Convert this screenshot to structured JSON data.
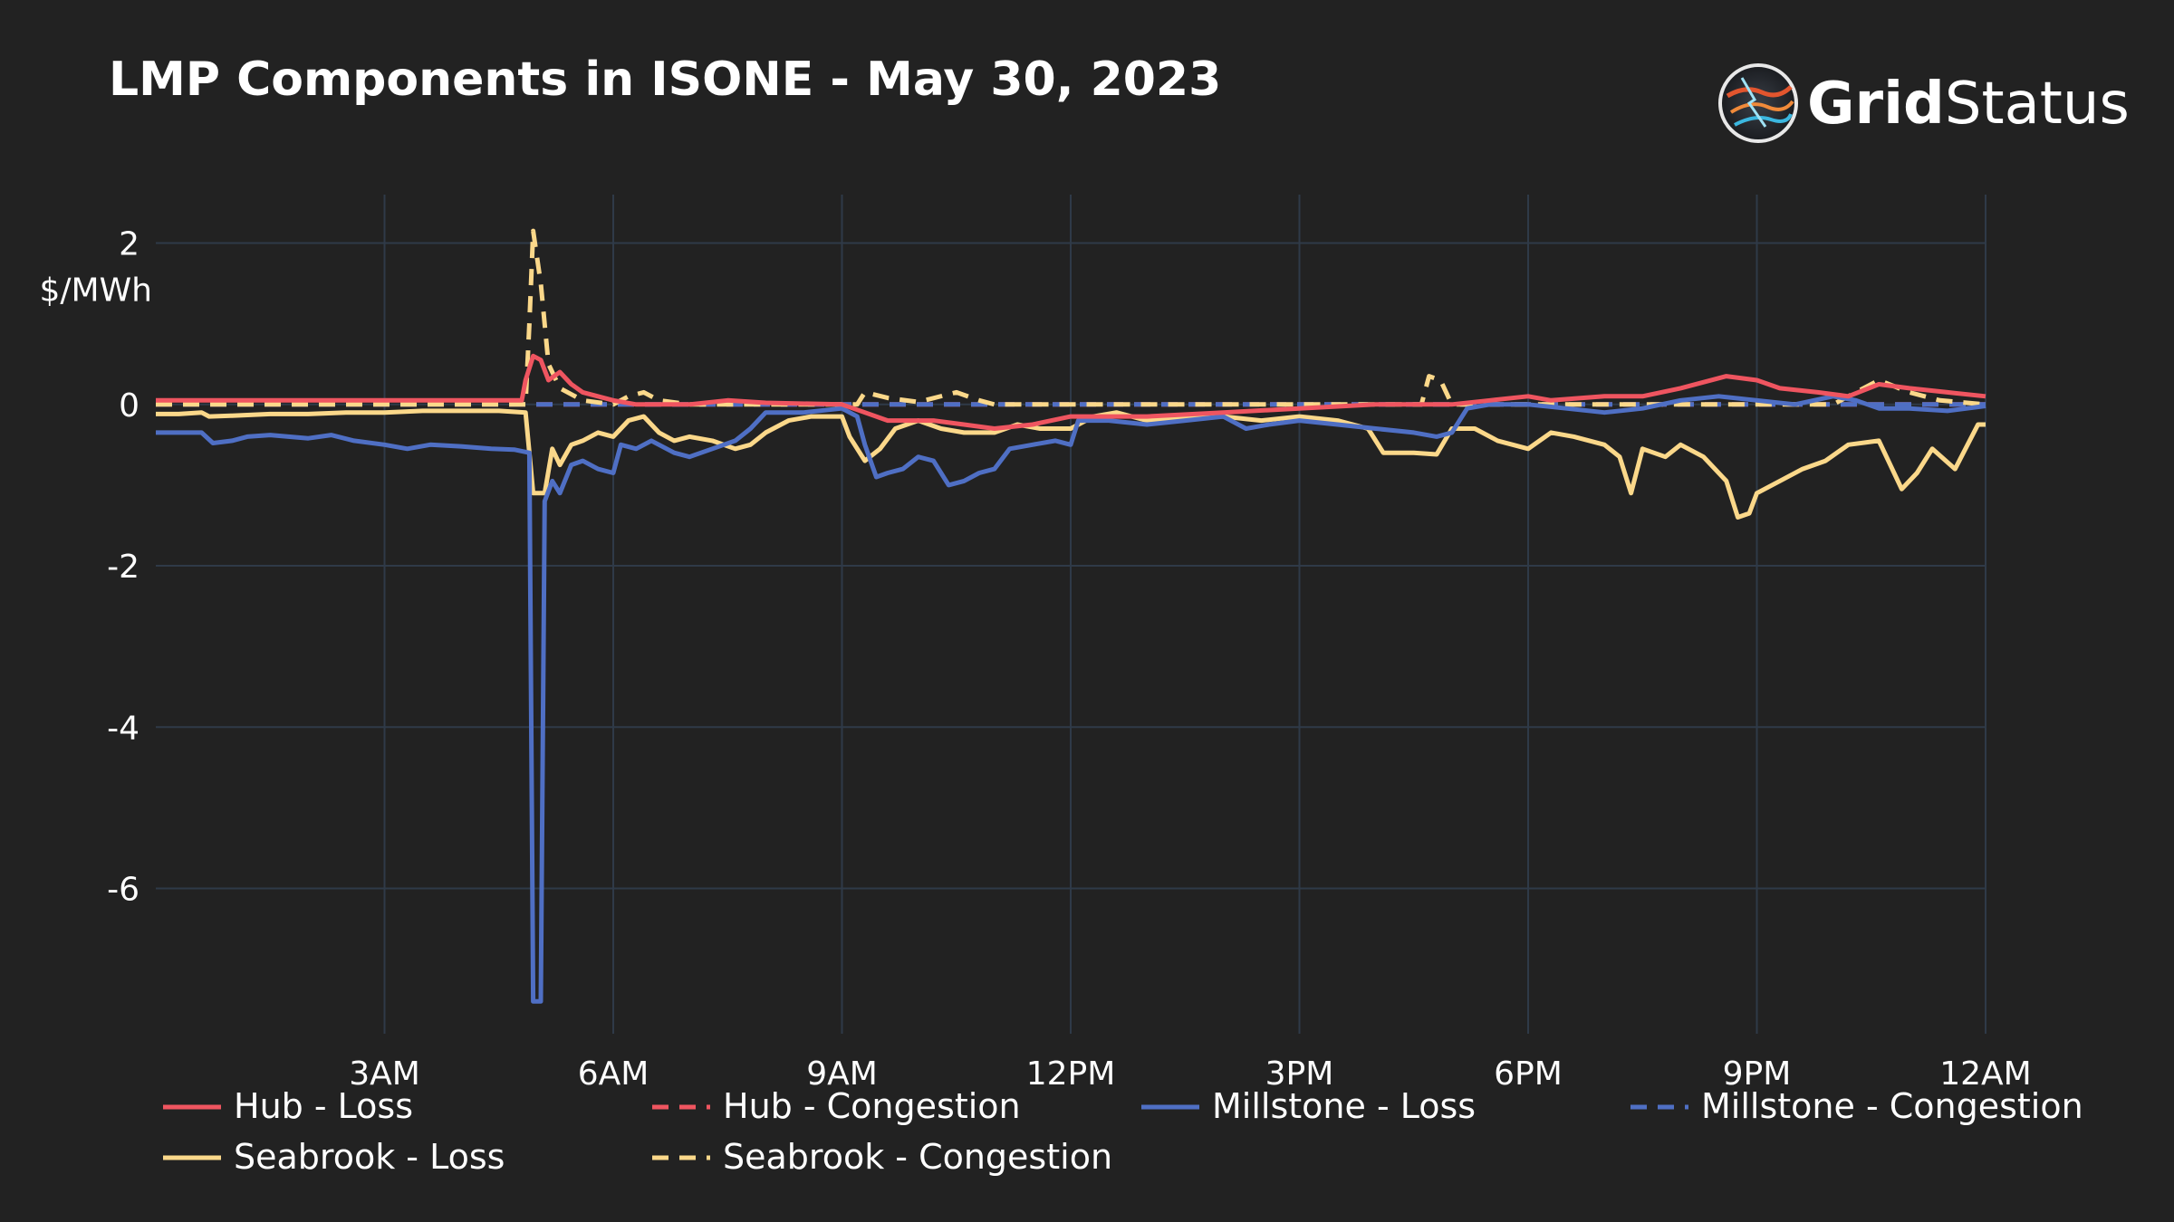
{
  "title": "LMP Components in ISONE - May 30, 2023",
  "logo": {
    "bold": "Grid",
    "regular": "Status"
  },
  "colors": {
    "background": "#222222",
    "grid": "#2f3a48",
    "text": "#ffffff",
    "red": "#ef5560",
    "blue": "#4f6fc4",
    "yellow": "#fbd88a"
  },
  "chart_data": {
    "type": "line",
    "title": "LMP Components in ISONE - May 30, 2023",
    "ylabel": "$/MWh",
    "xlabel": "",
    "x_unit": "hours since midnight May 30, 2023",
    "xlim": [
      0,
      24
    ],
    "ylim": [
      -7.8,
      2.6
    ],
    "x_ticks": [
      {
        "value": 3,
        "label": "3AM"
      },
      {
        "value": 6,
        "label": "6AM"
      },
      {
        "value": 9,
        "label": "9AM"
      },
      {
        "value": 12,
        "label": "12PM"
      },
      {
        "value": 15,
        "label": "3PM"
      },
      {
        "value": 18,
        "label": "6PM"
      },
      {
        "value": 21,
        "label": "9PM"
      },
      {
        "value": 24,
        "label": "12AM"
      }
    ],
    "y_ticks": [
      {
        "value": 2,
        "label": "2"
      },
      {
        "value": 0,
        "label": "0"
      },
      {
        "value": -2,
        "label": "-2"
      },
      {
        "value": -4,
        "label": "-4"
      },
      {
        "value": -6,
        "label": "-6"
      }
    ],
    "grid": true,
    "legend_position": "bottom",
    "series": [
      {
        "name": "Hub - Loss",
        "color": "#ef5560",
        "dash": "solid",
        "points": [
          [
            0,
            0.05
          ],
          [
            4.8,
            0.05
          ],
          [
            4.85,
            0.3
          ],
          [
            4.95,
            0.6
          ],
          [
            5.05,
            0.55
          ],
          [
            5.15,
            0.3
          ],
          [
            5.3,
            0.4
          ],
          [
            5.45,
            0.25
          ],
          [
            5.6,
            0.15
          ],
          [
            6,
            0.05
          ],
          [
            6.3,
            0
          ],
          [
            7,
            0
          ],
          [
            7.5,
            0.05
          ],
          [
            8,
            0.02
          ],
          [
            9,
            0
          ],
          [
            9.3,
            -0.1
          ],
          [
            9.6,
            -0.2
          ],
          [
            10.2,
            -0.2
          ],
          [
            10.6,
            -0.25
          ],
          [
            11,
            -0.3
          ],
          [
            11.5,
            -0.25
          ],
          [
            12,
            -0.15
          ],
          [
            13,
            -0.15
          ],
          [
            14,
            -0.1
          ],
          [
            15,
            -0.05
          ],
          [
            16,
            0
          ],
          [
            17,
            0
          ],
          [
            17.5,
            0.05
          ],
          [
            18,
            0.1
          ],
          [
            18.3,
            0.05
          ],
          [
            19,
            0.1
          ],
          [
            19.5,
            0.1
          ],
          [
            20,
            0.2
          ],
          [
            20.6,
            0.35
          ],
          [
            21,
            0.3
          ],
          [
            21.3,
            0.2
          ],
          [
            21.8,
            0.15
          ],
          [
            22.2,
            0.1
          ],
          [
            22.6,
            0.25
          ],
          [
            23,
            0.2
          ],
          [
            23.5,
            0.15
          ],
          [
            24,
            0.1
          ]
        ]
      },
      {
        "name": "Hub - Congestion",
        "color": "#ef5560",
        "dash": "dashed",
        "points": [
          [
            0,
            0
          ],
          [
            24,
            0
          ]
        ]
      },
      {
        "name": "Millstone - Loss",
        "color": "#4f6fc4",
        "dash": "solid",
        "points": [
          [
            0,
            -0.35
          ],
          [
            0.6,
            -0.35
          ],
          [
            0.75,
            -0.48
          ],
          [
            1,
            -0.45
          ],
          [
            1.2,
            -0.4
          ],
          [
            1.5,
            -0.38
          ],
          [
            2,
            -0.42
          ],
          [
            2.3,
            -0.38
          ],
          [
            2.6,
            -0.45
          ],
          [
            3,
            -0.5
          ],
          [
            3.3,
            -0.55
          ],
          [
            3.6,
            -0.5
          ],
          [
            4,
            -0.52
          ],
          [
            4.4,
            -0.55
          ],
          [
            4.7,
            -0.56
          ],
          [
            4.9,
            -0.6
          ],
          [
            4.95,
            -7.4
          ],
          [
            5.05,
            -7.4
          ],
          [
            5.1,
            -1.2
          ],
          [
            5.2,
            -0.95
          ],
          [
            5.3,
            -1.1
          ],
          [
            5.45,
            -0.75
          ],
          [
            5.6,
            -0.7
          ],
          [
            5.8,
            -0.8
          ],
          [
            6,
            -0.85
          ],
          [
            6.1,
            -0.5
          ],
          [
            6.3,
            -0.55
          ],
          [
            6.5,
            -0.45
          ],
          [
            6.8,
            -0.6
          ],
          [
            7,
            -0.65
          ],
          [
            7.3,
            -0.55
          ],
          [
            7.6,
            -0.45
          ],
          [
            7.8,
            -0.3
          ],
          [
            8,
            -0.1
          ],
          [
            8.5,
            -0.1
          ],
          [
            9,
            -0.05
          ],
          [
            9.2,
            -0.15
          ],
          [
            9.3,
            -0.5
          ],
          [
            9.45,
            -0.9
          ],
          [
            9.6,
            -0.85
          ],
          [
            9.8,
            -0.8
          ],
          [
            10,
            -0.65
          ],
          [
            10.2,
            -0.7
          ],
          [
            10.4,
            -1.0
          ],
          [
            10.6,
            -0.95
          ],
          [
            10.8,
            -0.85
          ],
          [
            11,
            -0.8
          ],
          [
            11.2,
            -0.55
          ],
          [
            11.5,
            -0.5
          ],
          [
            11.8,
            -0.45
          ],
          [
            12,
            -0.5
          ],
          [
            12.1,
            -0.2
          ],
          [
            12.5,
            -0.2
          ],
          [
            13,
            -0.25
          ],
          [
            13.5,
            -0.2
          ],
          [
            14,
            -0.15
          ],
          [
            14.3,
            -0.3
          ],
          [
            14.6,
            -0.25
          ],
          [
            15,
            -0.2
          ],
          [
            15.5,
            -0.25
          ],
          [
            16,
            -0.3
          ],
          [
            16.5,
            -0.35
          ],
          [
            16.8,
            -0.4
          ],
          [
            17,
            -0.35
          ],
          [
            17.2,
            -0.05
          ],
          [
            17.5,
            0
          ],
          [
            18,
            0
          ],
          [
            18.5,
            -0.05
          ],
          [
            19,
            -0.1
          ],
          [
            19.5,
            -0.05
          ],
          [
            20,
            0.05
          ],
          [
            20.5,
            0.1
          ],
          [
            21,
            0.05
          ],
          [
            21.5,
            0
          ],
          [
            22,
            0.1
          ],
          [
            22.3,
            0.05
          ],
          [
            22.6,
            -0.05
          ],
          [
            23,
            -0.05
          ],
          [
            23.5,
            -0.08
          ],
          [
            24,
            -0.02
          ]
        ]
      },
      {
        "name": "Millstone - Congestion",
        "color": "#4f6fc4",
        "dash": "dashed",
        "points": [
          [
            0,
            0
          ],
          [
            24,
            0
          ]
        ]
      },
      {
        "name": "Seabrook - Loss",
        "color": "#fbd88a",
        "dash": "solid",
        "points": [
          [
            0,
            -0.12
          ],
          [
            0.3,
            -0.12
          ],
          [
            0.6,
            -0.1
          ],
          [
            0.7,
            -0.15
          ],
          [
            1,
            -0.14
          ],
          [
            1.5,
            -0.12
          ],
          [
            2,
            -0.12
          ],
          [
            2.5,
            -0.1
          ],
          [
            3,
            -0.1
          ],
          [
            3.5,
            -0.08
          ],
          [
            4,
            -0.08
          ],
          [
            4.5,
            -0.08
          ],
          [
            4.85,
            -0.1
          ],
          [
            4.95,
            -1.1
          ],
          [
            5.1,
            -1.1
          ],
          [
            5.2,
            -0.55
          ],
          [
            5.3,
            -0.75
          ],
          [
            5.45,
            -0.5
          ],
          [
            5.6,
            -0.45
          ],
          [
            5.8,
            -0.35
          ],
          [
            6,
            -0.4
          ],
          [
            6.2,
            -0.2
          ],
          [
            6.4,
            -0.15
          ],
          [
            6.6,
            -0.35
          ],
          [
            6.8,
            -0.45
          ],
          [
            7,
            -0.4
          ],
          [
            7.3,
            -0.45
          ],
          [
            7.6,
            -0.55
          ],
          [
            7.8,
            -0.5
          ],
          [
            8,
            -0.35
          ],
          [
            8.3,
            -0.2
          ],
          [
            8.6,
            -0.15
          ],
          [
            9,
            -0.15
          ],
          [
            9.1,
            -0.4
          ],
          [
            9.3,
            -0.7
          ],
          [
            9.5,
            -0.55
          ],
          [
            9.7,
            -0.3
          ],
          [
            10,
            -0.2
          ],
          [
            10.3,
            -0.3
          ],
          [
            10.6,
            -0.35
          ],
          [
            11,
            -0.35
          ],
          [
            11.3,
            -0.25
          ],
          [
            11.6,
            -0.3
          ],
          [
            12,
            -0.3
          ],
          [
            12.3,
            -0.15
          ],
          [
            12.6,
            -0.1
          ],
          [
            13,
            -0.2
          ],
          [
            13.5,
            -0.15
          ],
          [
            14,
            -0.15
          ],
          [
            14.5,
            -0.2
          ],
          [
            15,
            -0.15
          ],
          [
            15.5,
            -0.2
          ],
          [
            15.9,
            -0.3
          ],
          [
            16.1,
            -0.6
          ],
          [
            16.5,
            -0.6
          ],
          [
            16.8,
            -0.62
          ],
          [
            17,
            -0.3
          ],
          [
            17.3,
            -0.3
          ],
          [
            17.6,
            -0.45
          ],
          [
            18,
            -0.55
          ],
          [
            18.3,
            -0.35
          ],
          [
            18.6,
            -0.4
          ],
          [
            19,
            -0.5
          ],
          [
            19.2,
            -0.65
          ],
          [
            19.35,
            -1.1
          ],
          [
            19.5,
            -0.55
          ],
          [
            19.8,
            -0.65
          ],
          [
            20,
            -0.5
          ],
          [
            20.3,
            -0.65
          ],
          [
            20.6,
            -0.95
          ],
          [
            20.75,
            -1.4
          ],
          [
            20.9,
            -1.35
          ],
          [
            21,
            -1.1
          ],
          [
            21.3,
            -0.95
          ],
          [
            21.6,
            -0.8
          ],
          [
            21.9,
            -0.7
          ],
          [
            22.2,
            -0.5
          ],
          [
            22.6,
            -0.45
          ],
          [
            22.9,
            -1.05
          ],
          [
            23.1,
            -0.85
          ],
          [
            23.3,
            -0.55
          ],
          [
            23.6,
            -0.8
          ],
          [
            23.9,
            -0.25
          ],
          [
            24,
            -0.25
          ]
        ]
      },
      {
        "name": "Seabrook - Congestion",
        "color": "#fbd88a",
        "dash": "dashed",
        "points": [
          [
            0,
            0
          ],
          [
            4.85,
            0
          ],
          [
            4.9,
            1.0
          ],
          [
            4.95,
            2.15
          ],
          [
            5.05,
            1.5
          ],
          [
            5.15,
            0.5
          ],
          [
            5.3,
            0.2
          ],
          [
            5.6,
            0.05
          ],
          [
            6,
            0
          ],
          [
            6.2,
            0.1
          ],
          [
            6.4,
            0.15
          ],
          [
            6.6,
            0.05
          ],
          [
            7,
            0
          ],
          [
            9.2,
            0
          ],
          [
            9.3,
            0.15
          ],
          [
            9.6,
            0.08
          ],
          [
            10,
            0.03
          ],
          [
            10.5,
            0.15
          ],
          [
            10.8,
            0.05
          ],
          [
            11,
            0
          ],
          [
            16.6,
            0
          ],
          [
            16.7,
            0.35
          ],
          [
            16.85,
            0.3
          ],
          [
            17,
            0
          ],
          [
            22,
            0
          ],
          [
            22.2,
            0.1
          ],
          [
            22.6,
            0.3
          ],
          [
            23,
            0.15
          ],
          [
            23.4,
            0.05
          ],
          [
            24,
            0
          ]
        ]
      }
    ]
  }
}
